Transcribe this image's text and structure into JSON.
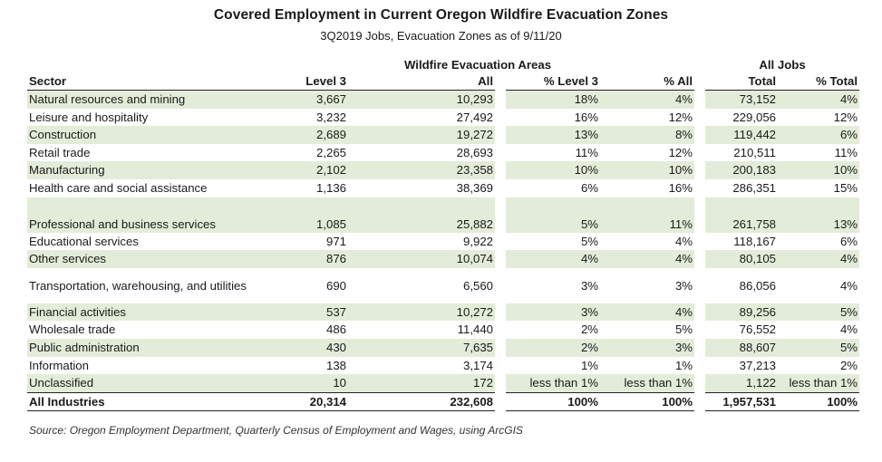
{
  "title": "Covered Employment in Current Oregon Wildfire Evacuation Zones",
  "subtitle": "3Q2019 Jobs, Evacuation Zones as of 9/11/20",
  "group_headers": {
    "evac": "Wildfire Evacuation Areas",
    "alljobs": "All Jobs"
  },
  "columns": {
    "sector": "Sector",
    "level3": "Level 3",
    "all": "All",
    "pct_level3": "% Level 3",
    "pct_all": "% All",
    "total": "Total",
    "pct_total": "% Total"
  },
  "rows": [
    {
      "sector": "Natural resources and mining",
      "level3": "3,667",
      "all": "10,293",
      "pct_level3": "18%",
      "pct_all": "4%",
      "total": "73,152",
      "pct_total": "4%"
    },
    {
      "sector": "Leisure and hospitality",
      "level3": "3,232",
      "all": "27,492",
      "pct_level3": "16%",
      "pct_all": "12%",
      "total": "229,056",
      "pct_total": "12%"
    },
    {
      "sector": "Construction",
      "level3": "2,689",
      "all": "19,272",
      "pct_level3": "13%",
      "pct_all": "8%",
      "total": "119,442",
      "pct_total": "6%"
    },
    {
      "sector": "Retail trade",
      "level3": "2,265",
      "all": "28,693",
      "pct_level3": "11%",
      "pct_all": "12%",
      "total": "210,511",
      "pct_total": "11%"
    },
    {
      "sector": "Manufacturing",
      "level3": "2,102",
      "all": "23,358",
      "pct_level3": "10%",
      "pct_all": "10%",
      "total": "200,183",
      "pct_total": "10%"
    },
    {
      "sector": "Health care and social assistance",
      "level3": "1,136",
      "all": "38,369",
      "pct_level3": "6%",
      "pct_all": "16%",
      "total": "286,351",
      "pct_total": "15%"
    },
    {
      "sector": "Professional and business services",
      "level3": "1,085",
      "all": "25,882",
      "pct_level3": "5%",
      "pct_all": "11%",
      "total": "261,758",
      "pct_total": "13%"
    },
    {
      "sector": "Educational services",
      "level3": "971",
      "all": "9,922",
      "pct_level3": "5%",
      "pct_all": "4%",
      "total": "118,167",
      "pct_total": "6%"
    },
    {
      "sector": "Other services",
      "level3": "876",
      "all": "10,074",
      "pct_level3": "4%",
      "pct_all": "4%",
      "total": "80,105",
      "pct_total": "4%"
    },
    {
      "sector": "Transportation, warehousing, and utilities",
      "level3": "690",
      "all": "6,560",
      "pct_level3": "3%",
      "pct_all": "3%",
      "total": "86,056",
      "pct_total": "4%"
    },
    {
      "sector": "Financial activities",
      "level3": "537",
      "all": "10,272",
      "pct_level3": "3%",
      "pct_all": "4%",
      "total": "89,256",
      "pct_total": "5%"
    },
    {
      "sector": "Wholesale trade",
      "level3": "486",
      "all": "11,440",
      "pct_level3": "2%",
      "pct_all": "5%",
      "total": "76,552",
      "pct_total": "4%"
    },
    {
      "sector": "Public administration",
      "level3": "430",
      "all": "7,635",
      "pct_level3": "2%",
      "pct_all": "3%",
      "total": "88,607",
      "pct_total": "5%"
    },
    {
      "sector": "Information",
      "level3": "138",
      "all": "3,174",
      "pct_level3": "1%",
      "pct_all": "1%",
      "total": "37,213",
      "pct_total": "2%"
    },
    {
      "sector": "Unclassified",
      "level3": "10",
      "all": "172",
      "pct_level3": "less than 1%",
      "pct_all": "less than 1%",
      "total": "1,122",
      "pct_total": "less than 1%"
    }
  ],
  "total_row": {
    "sector": "All Industries",
    "level3": "20,314",
    "all": "232,608",
    "pct_level3": "100%",
    "pct_all": "100%",
    "total": "1,957,531",
    "pct_total": "100%"
  },
  "source": "Source: Oregon Employment Department, Quarterly Census of Employment and Wages, using ArcGIS",
  "colors": {
    "row_shade": "#e3ecd8"
  }
}
